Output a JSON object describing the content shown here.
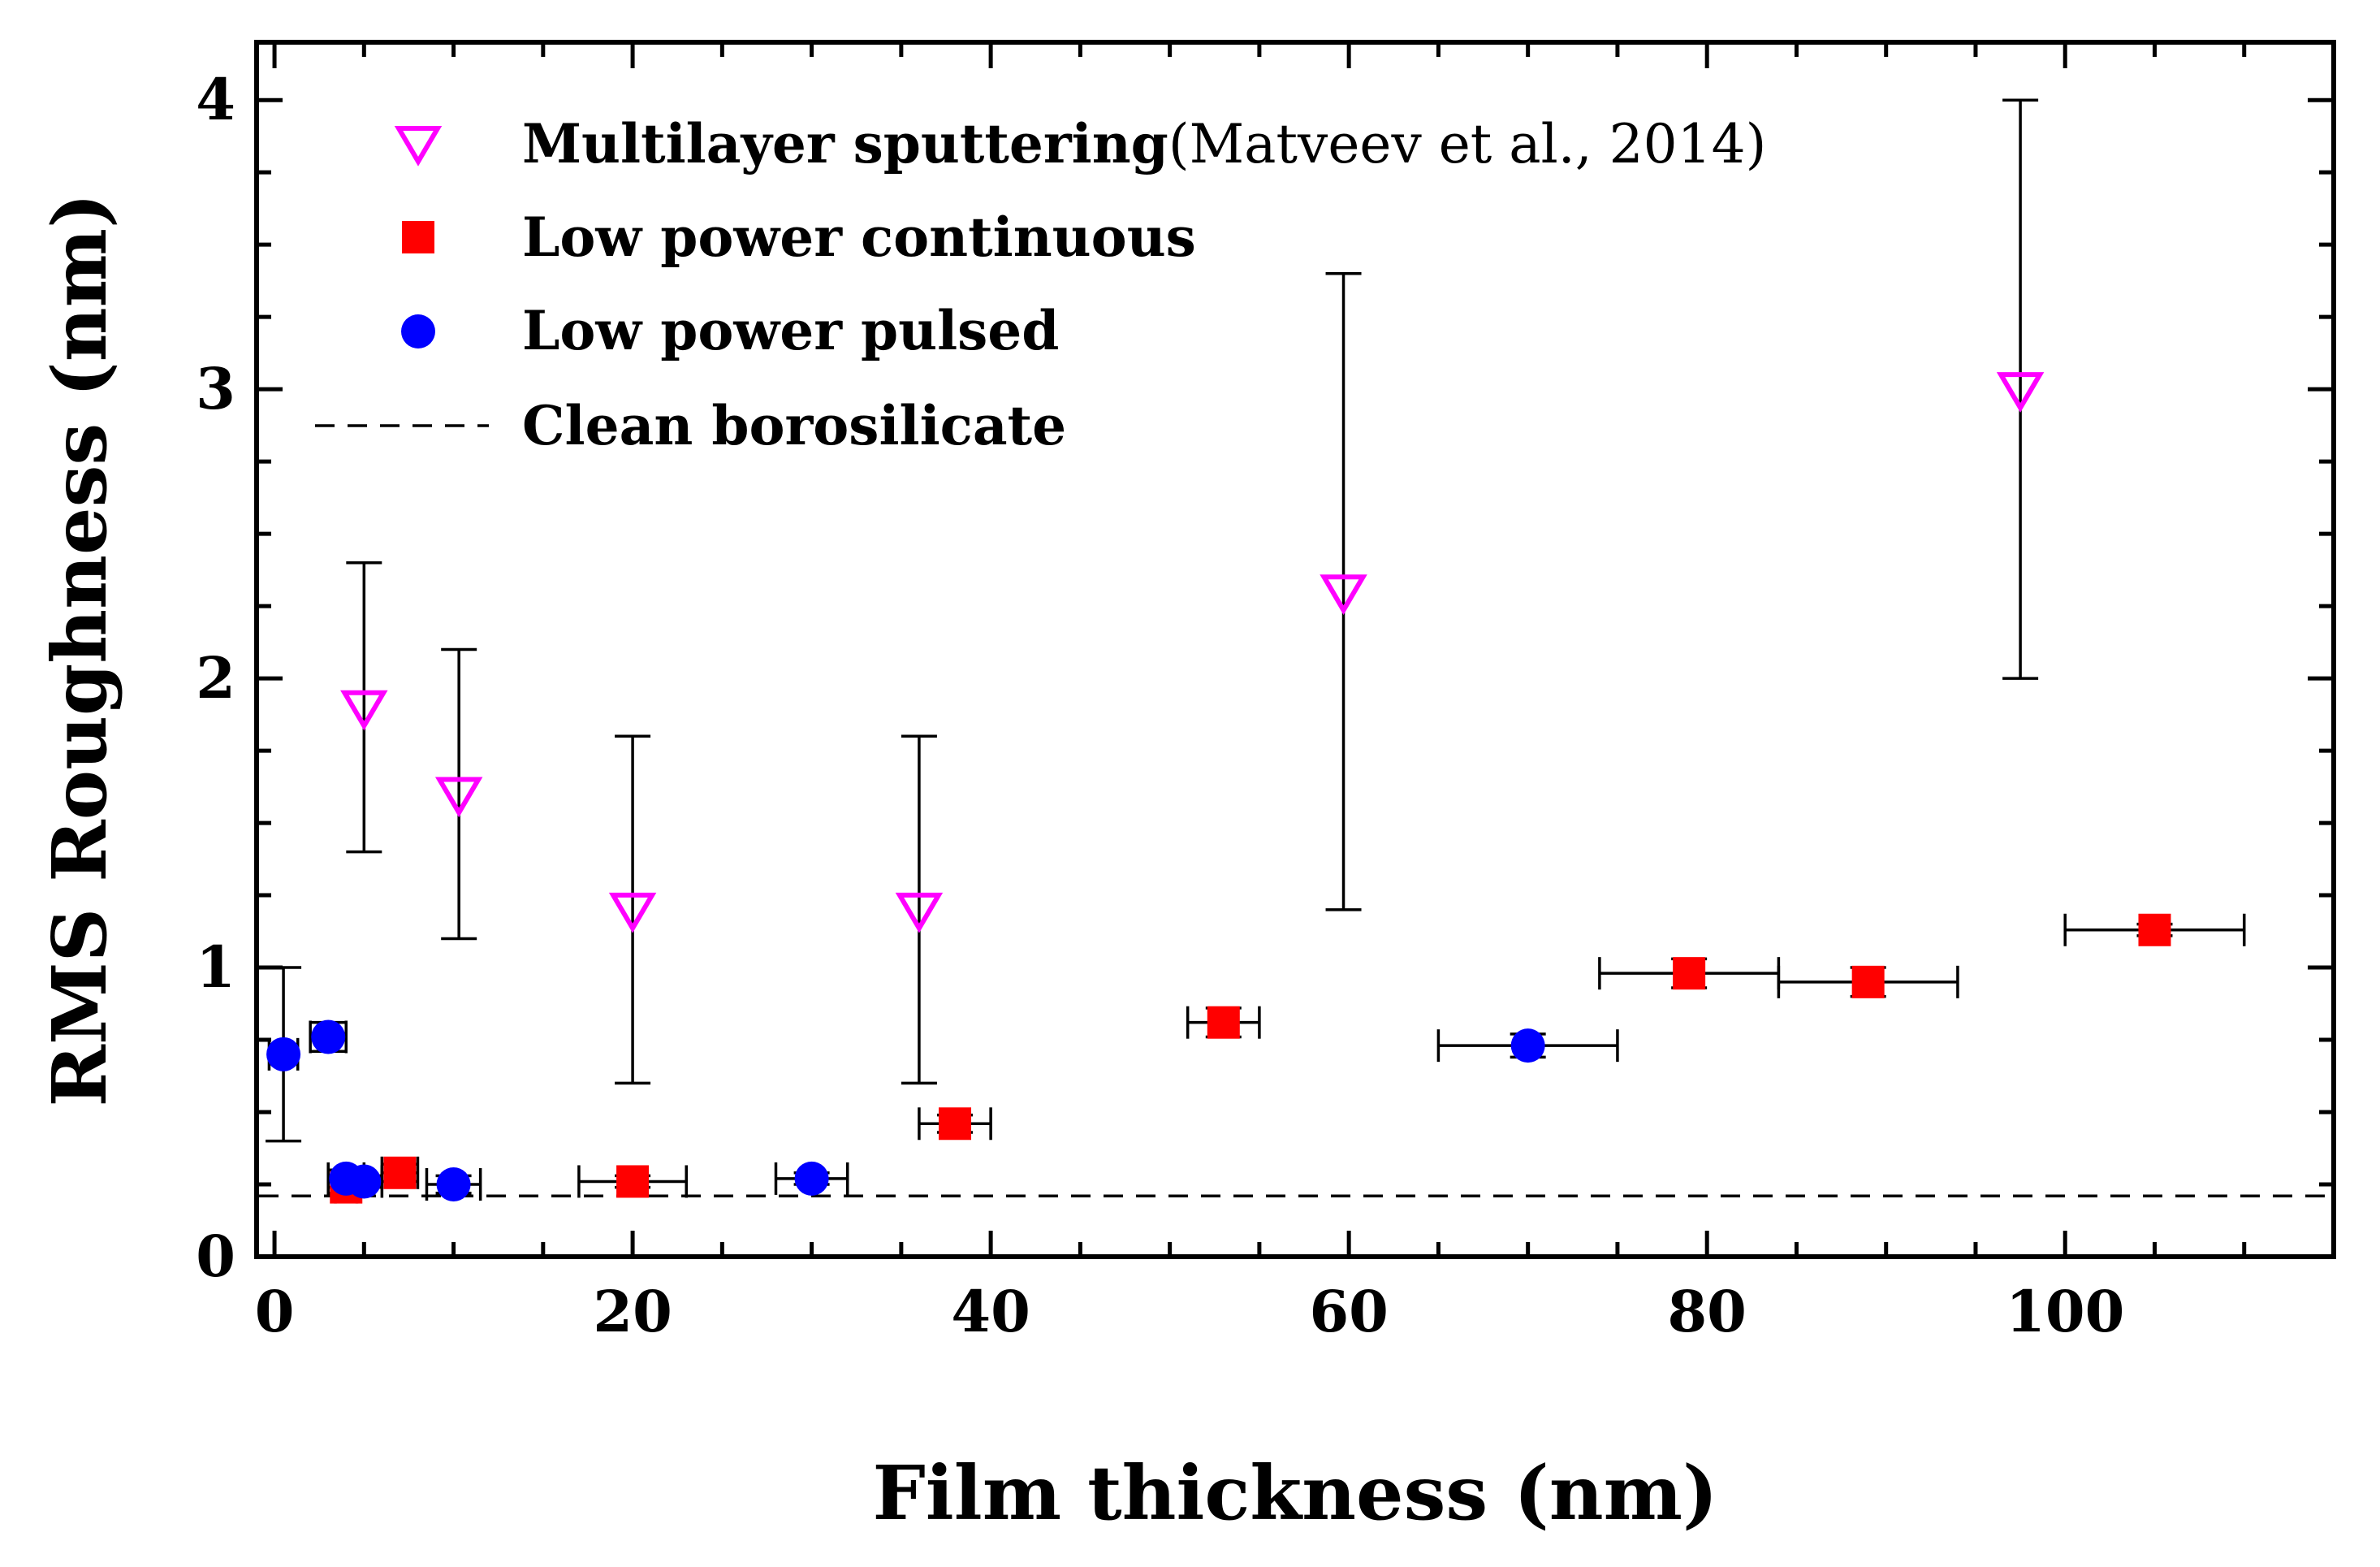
{
  "chart_data": {
    "type": "scatter",
    "title": "",
    "xlabel": "Film thickness (nm)",
    "ylabel": "RMS Roughness (nm)",
    "xlim": [
      -1,
      115
    ],
    "ylim": [
      0,
      4.2
    ],
    "x_ticks": [
      "0",
      "20",
      "40",
      "60",
      "80",
      "100"
    ],
    "y_ticks": [
      "0",
      "1",
      "2",
      "3",
      "4"
    ],
    "grid": false,
    "legend_position": "top-left",
    "colors": {
      "multilayer": "#ff00ff",
      "continuous": "#ff0000",
      "pulsed": "#0000ff",
      "axis": "#000000"
    },
    "series": [
      {
        "name": "Multilayer sputtering",
        "citation": "(Matveev et al., 2014)",
        "marker": "open-triangle-down",
        "points": [
          {
            "x": 5,
            "y": 1.9,
            "y_err": 0.5
          },
          {
            "x": 10.3,
            "y": 1.6,
            "y_err": 0.5
          },
          {
            "x": 20,
            "y": 1.2,
            "y_err": 0.6
          },
          {
            "x": 36,
            "y": 1.2,
            "y_err": 0.6
          },
          {
            "x": 59.7,
            "y": 2.3,
            "y_err": 1.1
          },
          {
            "x": 97.5,
            "y": 3.0,
            "y_err": 1.0
          }
        ]
      },
      {
        "name": "Low power continuous",
        "marker": "filled-square",
        "points": [
          {
            "x": 4,
            "y": 0.24,
            "x_err": 0.6,
            "y_err": 0.02
          },
          {
            "x": 7,
            "y": 0.29,
            "x_err": 1.0,
            "y_err": 0.03
          },
          {
            "x": 20,
            "y": 0.26,
            "x_err": 3.0,
            "y_err": 0.02
          },
          {
            "x": 38,
            "y": 0.46,
            "x_err": 2.0,
            "y_err": 0.03
          },
          {
            "x": 53,
            "y": 0.81,
            "x_err": 2.0,
            "y_err": 0.05
          },
          {
            "x": 79,
            "y": 0.98,
            "x_err": 5.0,
            "y_err": 0.05
          },
          {
            "x": 89,
            "y": 0.95,
            "x_err": 5.0,
            "y_err": 0.05
          },
          {
            "x": 105,
            "y": 1.13,
            "x_err": 5.0,
            "y_err": 0.02
          }
        ]
      },
      {
        "name": "Low power pulsed",
        "marker": "filled-circle",
        "points": [
          {
            "x": 0.5,
            "y": 0.7,
            "x_err": 0.8,
            "y_err": 0.3
          },
          {
            "x": 3,
            "y": 0.76,
            "x_err": 1.0,
            "y_err": 0.05
          },
          {
            "x": 4,
            "y": 0.27,
            "x_err": 1.0,
            "y_err": 0.03
          },
          {
            "x": 5,
            "y": 0.26,
            "x_err": 1.0,
            "y_err": 0.02
          },
          {
            "x": 10,
            "y": 0.25,
            "x_err": 1.5,
            "y_err": 0.03
          },
          {
            "x": 30,
            "y": 0.27,
            "x_err": 2.0,
            "y_err": 0.02
          },
          {
            "x": 70,
            "y": 0.73,
            "x_err": 5.0,
            "y_err": 0.04
          }
        ]
      }
    ],
    "reference_line": {
      "name": "Clean borosilicate",
      "y": 0.21,
      "style": "dashed"
    }
  }
}
